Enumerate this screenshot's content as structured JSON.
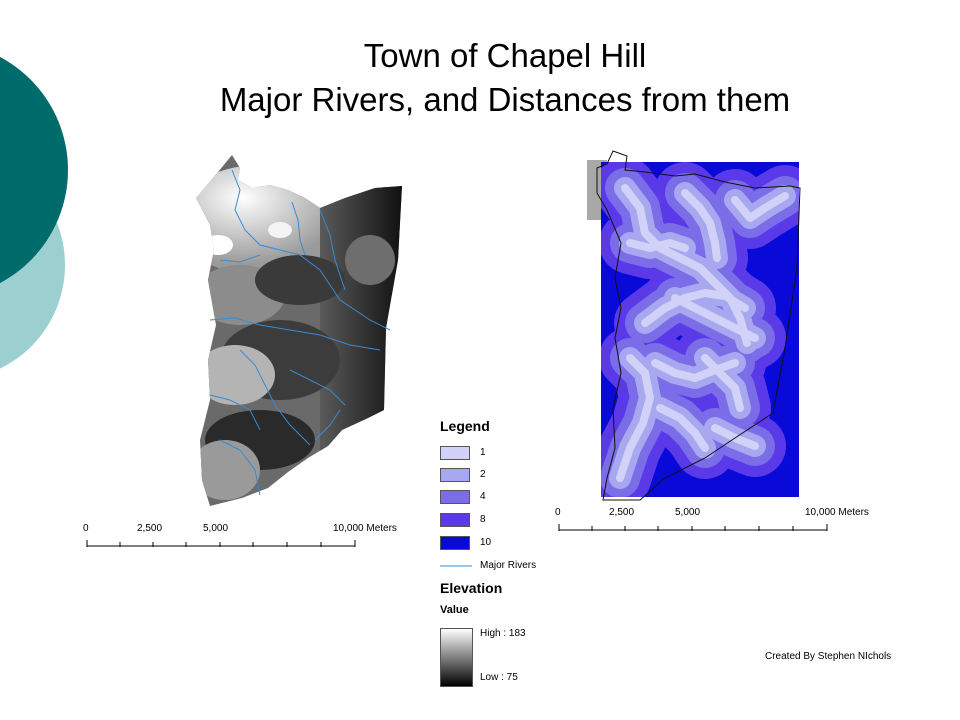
{
  "slide": {
    "title_line1": "Town of Chapel Hill",
    "title_line2": "Major Rivers, and Distances from them",
    "credit": "Created By Stephen NIchols"
  },
  "colors": {
    "teal_dark": "#006b6b",
    "teal_light": "#9cd0d0",
    "distance_fill": "#2b2bd8"
  },
  "scalebar_left": {
    "labels": [
      "0",
      "2,500",
      "5,000",
      "10,000 Meters"
    ]
  },
  "scalebar_right": {
    "labels": [
      "0",
      "2,500",
      "5,000",
      "10,000 Meters"
    ]
  },
  "legend": {
    "title": "Legend",
    "distance_classes": [
      {
        "label": "1",
        "color": "#d2d2f8"
      },
      {
        "label": "2",
        "color": "#a8a8f0"
      },
      {
        "label": "4",
        "color": "#7b6ce8"
      },
      {
        "label": "8",
        "color": "#5a3ae8"
      },
      {
        "label": "10",
        "color": "#0a0ad8"
      }
    ],
    "rivers_label": "Major Rivers",
    "rivers_color": "#3a8ad0",
    "elevation_title": "Elevation",
    "value_label": "Value",
    "high_label": "High : 183",
    "low_label": "Low : 75"
  }
}
